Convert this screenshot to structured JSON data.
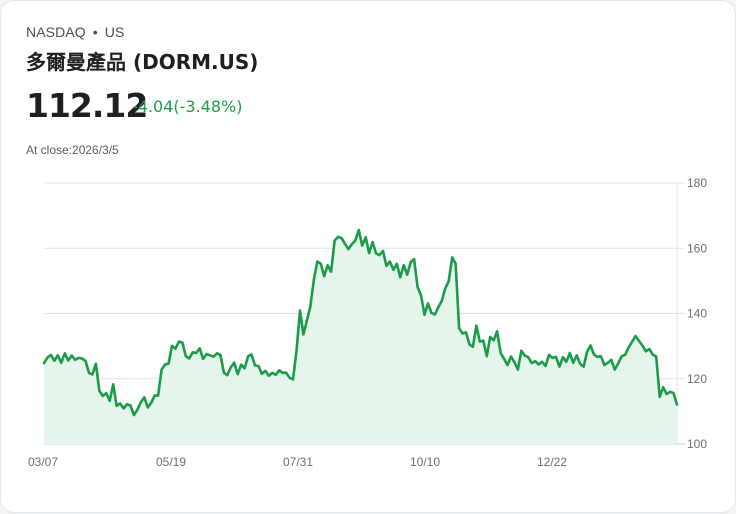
{
  "header": {
    "exchange": "NASDAQ",
    "separator": "•",
    "region": "US",
    "title": "多爾曼產品 (DORM.US)",
    "price": "112.12",
    "change": "-4.04(-3.48%)",
    "as_of": "At close:2026/3/5"
  },
  "colors": {
    "line": "#1a9c48",
    "fill": "#e6f5ec",
    "change_text": "#1f9d4a",
    "grid": "#e3e3e3"
  },
  "chart_data": {
    "type": "area",
    "title": "多爾曼產品 (DORM.US)",
    "xlabel": "",
    "ylabel": "",
    "ylim": [
      100,
      180
    ],
    "yticks": [
      100,
      120,
      140,
      160,
      180
    ],
    "xtick_labels": [
      "03/07",
      "05/19",
      "07/31",
      "10/10",
      "12/22"
    ],
    "grid": true,
    "y_axis_position": "right",
    "series": [
      {
        "name": "DORM.US",
        "values": [
          124.8,
          126.5,
          127.3,
          125.5,
          127.2,
          124.9,
          127.8,
          125.6,
          127.1,
          125.8,
          126.4,
          126.2,
          125.5,
          121.8,
          121.3,
          124.6,
          116.3,
          114.7,
          115.6,
          113.2,
          118.3,
          111.7,
          112.4,
          110.9,
          112.2,
          111.8,
          108.9,
          110.5,
          112.8,
          114.3,
          111.2,
          112.6,
          114.9,
          114.8,
          122.8,
          124.4,
          124.6,
          130.1,
          129.2,
          131.4,
          131.1,
          126.9,
          126.2,
          128.1,
          127.9,
          129.3,
          126.1,
          127.6,
          127.2,
          126.8,
          127.8,
          127.3,
          121.9,
          121.1,
          123.5,
          124.9,
          121.4,
          124.3,
          123.2,
          126.9,
          127.4,
          124.1,
          123.9,
          121.5,
          122.4,
          120.9,
          121.8,
          121.2,
          122.6,
          121.8,
          121.9,
          120.3,
          119.8,
          128.5,
          140.9,
          133.6,
          137.9,
          142.1,
          150.2,
          155.9,
          155.3,
          151.4,
          154.8,
          152.8,
          162.3,
          163.5,
          163.1,
          161.4,
          159.7,
          161.3,
          162.3,
          165.6,
          160.8,
          163.4,
          158.5,
          161.9,
          158.4,
          157.9,
          159.2,
          154.6,
          155.9,
          153.4,
          155.2,
          151.1,
          154.8,
          151.9,
          155.8,
          156.6,
          148.1,
          145.6,
          139.6,
          143.1,
          140.2,
          139.7,
          141.9,
          143.9,
          147.6,
          149.9,
          157.2,
          155.3,
          135.5,
          133.9,
          134.2,
          130.5,
          129.8,
          136.3,
          131.4,
          131.7,
          126.9,
          132.8,
          131.8,
          134.5,
          127.9,
          126.1,
          124.2,
          126.8,
          125.1,
          122.8,
          128.6,
          127.1,
          126.6,
          124.8,
          125.4,
          124.4,
          125.2,
          123.9,
          127.3,
          126.4,
          126.7,
          123.7,
          126.6,
          125.2,
          127.9,
          124.9,
          127.2,
          124.6,
          123.7,
          128.3,
          130.2,
          127.4,
          126.7,
          126.9,
          124.2,
          124.9,
          125.8,
          122.8,
          124.7,
          126.9,
          127.3,
          129.6,
          131.3,
          133.1,
          131.6,
          130.2,
          128.4,
          129.1,
          127.4,
          126.8,
          114.4,
          117.4,
          115.3,
          116.0,
          115.6,
          112.1
        ]
      }
    ]
  }
}
